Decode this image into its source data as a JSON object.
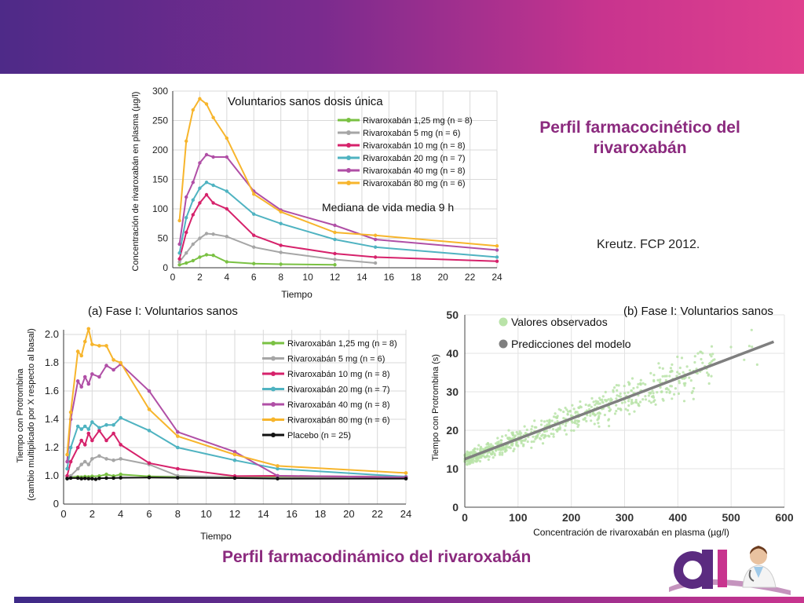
{
  "slide": {
    "title_pk": "Perfil farmacocinético del rivaroxabán",
    "title_pd": "Perfil farmacodinámico del rivaroxabán",
    "citation": "Kreutz. FCP 2012.",
    "colors": {
      "banner_start": "#4e2a88",
      "banner_end": "#e0408e",
      "title": "#8b2a7e"
    }
  },
  "chart_data": [
    {
      "type": "line",
      "title": "Voluntarios sanos dosis única",
      "annotation": "Mediana de vida media 9 h",
      "xlabel": "Tiempo",
      "ylabel": "Concentración de rivaroxabán en plasma (µg/l)",
      "xlim": [
        0,
        24
      ],
      "ylim": [
        0,
        300
      ],
      "xticks": [
        "0",
        "2",
        "4",
        "6",
        "8",
        "10",
        "12",
        "14",
        "16",
        "18",
        "20",
        "22",
        "24"
      ],
      "yticks": [
        "0",
        "50",
        "100",
        "150",
        "200",
        "250",
        "300"
      ],
      "series": [
        {
          "name": "Rivaroxabán 1,25 mg (n = 8)",
          "color": "#7ac143",
          "x": [
            0.5,
            1,
            1.5,
            2,
            2.5,
            3,
            4,
            6,
            8,
            12
          ],
          "y": [
            5,
            8,
            12,
            18,
            22,
            21,
            10,
            7,
            6,
            5
          ]
        },
        {
          "name": "Rivaroxabán 5 mg (n = 6)",
          "color": "#a6a6a6",
          "x": [
            0.5,
            1,
            1.5,
            2,
            2.5,
            3,
            4,
            6,
            8,
            12,
            15
          ],
          "y": [
            10,
            25,
            40,
            50,
            58,
            57,
            53,
            35,
            26,
            14,
            8
          ]
        },
        {
          "name": "Rivaroxabán 10 mg (n = 8)",
          "color": "#d6226b",
          "x": [
            0.5,
            1,
            1.5,
            2,
            2.5,
            3,
            4,
            6,
            8,
            12,
            15,
            24
          ],
          "y": [
            15,
            60,
            90,
            110,
            124,
            110,
            100,
            55,
            38,
            24,
            18,
            11
          ]
        },
        {
          "name": "Rivaroxabán 20 mg (n = 7)",
          "color": "#4fb3c1",
          "x": [
            0.5,
            1,
            1.5,
            2,
            2.5,
            3,
            4,
            6,
            8,
            12,
            15,
            24
          ],
          "y": [
            25,
            85,
            115,
            135,
            145,
            140,
            130,
            91,
            75,
            48,
            35,
            18
          ]
        },
        {
          "name": "Rivaroxabán 40 mg (n = 8)",
          "color": "#b04fa6",
          "x": [
            0.5,
            1,
            1.5,
            2,
            2.5,
            3,
            4,
            6,
            8,
            12,
            15,
            24
          ],
          "y": [
            40,
            120,
            145,
            178,
            192,
            188,
            188,
            130,
            98,
            72,
            48,
            30
          ]
        },
        {
          "name": "Rivaroxabán 80 mg (n = 6)",
          "color": "#f7b52c",
          "x": [
            0.5,
            1,
            1.5,
            2,
            2.5,
            3,
            4,
            6,
            8,
            12,
            15,
            24
          ],
          "y": [
            80,
            215,
            268,
            287,
            278,
            255,
            220,
            125,
            95,
            60,
            55,
            37
          ]
        }
      ]
    },
    {
      "type": "line",
      "title": "(a) Fase I: Voluntarios sanos",
      "xlabel": "Tiempo",
      "ylabel": "Tiempo con Protrombina (cambio multiplicado por X respecto al basal)",
      "xlim": [
        0,
        24
      ],
      "ylim": [
        0,
        2.0
      ],
      "xticks": [
        "0",
        "2",
        "4",
        "6",
        "8",
        "10",
        "12",
        "14",
        "16",
        "18",
        "20",
        "22",
        "24"
      ],
      "yticks": [
        "0",
        "1.0",
        "1.2",
        "1.4",
        "1.6",
        "1.8",
        "2.0"
      ],
      "series": [
        {
          "name": "Rivaroxabán 1,25 mg (n = 8)",
          "color": "#7ac143",
          "x": [
            0.25,
            0.5,
            1,
            1.25,
            1.5,
            1.75,
            2,
            2.5,
            3,
            3.5,
            4,
            6,
            8,
            12,
            15,
            24
          ],
          "y": [
            0.94,
            0.95,
            0.96,
            0.95,
            0.97,
            0.96,
            0.98,
            0.99,
            1.01,
            0.99,
            1.01,
            0.98,
            0.95,
            0.95,
            0.97,
            0.96
          ]
        },
        {
          "name": "Rivaroxabán 5 mg (n = 6)",
          "color": "#a6a6a6",
          "x": [
            0.25,
            0.5,
            1,
            1.25,
            1.5,
            1.75,
            2,
            2.5,
            3,
            3.5,
            4,
            6,
            8,
            12,
            15,
            24
          ],
          "y": [
            0.95,
            1.0,
            1.05,
            1.08,
            1.1,
            1.08,
            1.12,
            1.14,
            1.12,
            1.11,
            1.12,
            1.08,
            1.0,
            0.93,
            0.92,
            0.92
          ]
        },
        {
          "name": "Rivaroxabán 10 mg (n = 8)",
          "color": "#d6226b",
          "x": [
            0.25,
            0.5,
            1,
            1.25,
            1.5,
            1.75,
            2,
            2.5,
            3,
            3.5,
            4,
            6,
            8,
            12,
            15,
            24
          ],
          "y": [
            1.0,
            1.1,
            1.2,
            1.25,
            1.22,
            1.3,
            1.25,
            1.32,
            1.25,
            1.3,
            1.22,
            1.09,
            1.05,
            0.99,
            1.0,
            0.95
          ]
        },
        {
          "name": "Rivaroxabán 20 mg (n = 7)",
          "color": "#4fb3c1",
          "x": [
            0.25,
            0.5,
            1,
            1.25,
            1.5,
            1.75,
            2,
            2.5,
            3,
            3.5,
            4,
            6,
            8,
            12,
            15,
            24
          ],
          "y": [
            1.05,
            1.2,
            1.35,
            1.33,
            1.35,
            1.33,
            1.38,
            1.34,
            1.36,
            1.36,
            1.41,
            1.32,
            1.2,
            1.11,
            1.05,
            0.97
          ]
        },
        {
          "name": "Rivaroxabán 40 mg (n = 8)",
          "color": "#b04fa6",
          "x": [
            0.25,
            0.5,
            1,
            1.25,
            1.5,
            1.75,
            2,
            2.5,
            3,
            3.5,
            4,
            6,
            8,
            12,
            15,
            24
          ],
          "y": [
            1.1,
            1.4,
            1.67,
            1.63,
            1.7,
            1.65,
            1.72,
            1.7,
            1.78,
            1.75,
            1.79,
            1.6,
            1.31,
            1.17,
            1.0,
            0.95
          ]
        },
        {
          "name": "Rivaroxabán 80 mg (n = 6)",
          "color": "#f7b52c",
          "x": [
            0.25,
            0.5,
            1,
            1.25,
            1.5,
            1.75,
            2,
            2.5,
            3,
            3.5,
            4,
            6,
            8,
            12,
            15,
            24
          ],
          "y": [
            1.15,
            1.45,
            1.88,
            1.85,
            1.95,
            2.04,
            1.93,
            1.92,
            1.92,
            1.82,
            1.8,
            1.47,
            1.28,
            1.15,
            1.07,
            1.02
          ]
        },
        {
          "name": "Placebo (n = 25)",
          "color": "#111111",
          "x": [
            0.25,
            0.5,
            1,
            1.25,
            1.5,
            1.75,
            2,
            2.25,
            2.5,
            3,
            3.5,
            4,
            6,
            8,
            12,
            15,
            24
          ],
          "y": [
            0.9,
            0.92,
            0.92,
            0.9,
            0.91,
            0.9,
            0.9,
            0.88,
            0.91,
            0.92,
            0.92,
            0.93,
            0.94,
            0.93,
            0.92,
            0.9,
            0.9
          ]
        }
      ]
    },
    {
      "type": "scatter",
      "title": "(b) Fase I: Voluntarios sanos",
      "xlabel": "Concentración de rivaroxabán en plasma (µg/l)",
      "ylabel": "Tiempo con Protrombina (s)",
      "xlim": [
        0,
        600
      ],
      "ylim": [
        0,
        50
      ],
      "xticks": [
        "0",
        "100",
        "200",
        "300",
        "400",
        "500",
        "600"
      ],
      "yticks": [
        "0",
        "10",
        "20",
        "30",
        "40",
        "50"
      ],
      "series": [
        {
          "name": "Valores observados",
          "color": "#b9e3a8",
          "note": "dense cloud of observations around the regression line"
        },
        {
          "name": "Predicciones del modelo",
          "color": "#7f7f7f",
          "line": {
            "x": [
              0,
              580
            ],
            "y": [
              12.5,
              43
            ]
          }
        }
      ]
    }
  ]
}
